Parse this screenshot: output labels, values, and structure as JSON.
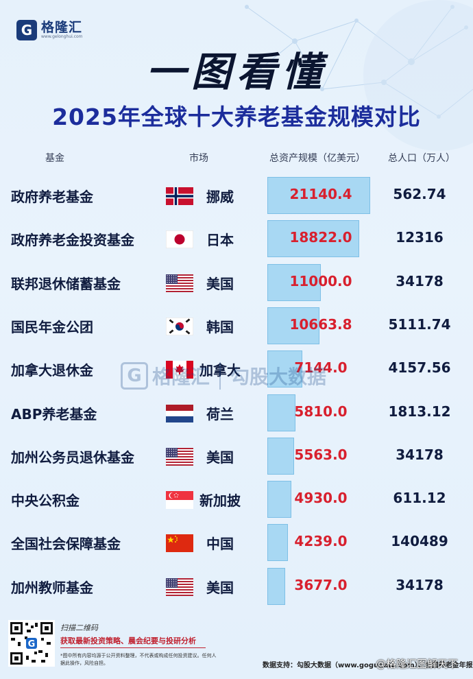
{
  "brand": {
    "name": "格隆汇",
    "url": "www.gelonghui.com",
    "mark": "G"
  },
  "headline": "一图看懂",
  "chart_data": {
    "type": "table",
    "title": "2025年全球十大养老基金规模对比",
    "columns": [
      "基金",
      "市场",
      "总资产规模（亿美元）",
      "总人口（万人）"
    ],
    "rows": [
      {
        "fund": "政府养老基金",
        "market": "挪威",
        "flag": "norway",
        "assets": 21140.4,
        "assets_label": "21140.4",
        "population": "562.74"
      },
      {
        "fund": "政府养老金投资基金",
        "market": "日本",
        "flag": "japan",
        "assets": 18822.0,
        "assets_label": "18822.0",
        "population": "12316"
      },
      {
        "fund": "联邦退休储蓄基金",
        "market": "美国",
        "flag": "usa",
        "assets": 11000.0,
        "assets_label": "11000.0",
        "population": "34178"
      },
      {
        "fund": "国民年金公团",
        "market": "韩国",
        "flag": "korea",
        "assets": 10663.8,
        "assets_label": "10663.8",
        "population": "5111.74"
      },
      {
        "fund": "加拿大退休金",
        "market": "加拿大",
        "flag": "canada",
        "assets": 7144.0,
        "assets_label": "7144.0",
        "population": "4157.56"
      },
      {
        "fund": "ABP养老基金",
        "market": "荷兰",
        "flag": "netherlands",
        "assets": 5810.0,
        "assets_label": "5810.0",
        "population": "1813.12"
      },
      {
        "fund": "加州公务员退休基金",
        "market": "美国",
        "flag": "usa",
        "assets": 5563.0,
        "assets_label": "5563.0",
        "population": "34178"
      },
      {
        "fund": "中央公积金",
        "market": "新加披",
        "flag": "singapore",
        "assets": 4930.0,
        "assets_label": "4930.0",
        "population": "611.12"
      },
      {
        "fund": "全国社会保障基金",
        "market": "中国",
        "flag": "china",
        "assets": 4239.0,
        "assets_label": "4239.0",
        "population": "140489"
      },
      {
        "fund": "加州教师基金",
        "market": "美国",
        "flag": "usa",
        "assets": 3677.0,
        "assets_label": "3677.0",
        "population": "34178"
      }
    ],
    "bar_max": 21140.4,
    "bar_color": "#a8d8f3",
    "value_color": "#d8202e"
  },
  "watermark": {
    "left": "格隆汇",
    "right": "勾股大数据",
    "right_url": "www.gogudata.com"
  },
  "footer": {
    "scan": "扫描二维码",
    "slogan": "获取最新投资策略、晨会纪要与投研分析",
    "disclaimer": "*图中所有内容均源于公开资料整理，不代表或构成任何投资建议。任何人据此操作，风险自担。",
    "source": "数据支持：勾股大数据（www.gogudata.com）、全国养老金年报",
    "weibo": "@格隆汇图解天下"
  }
}
